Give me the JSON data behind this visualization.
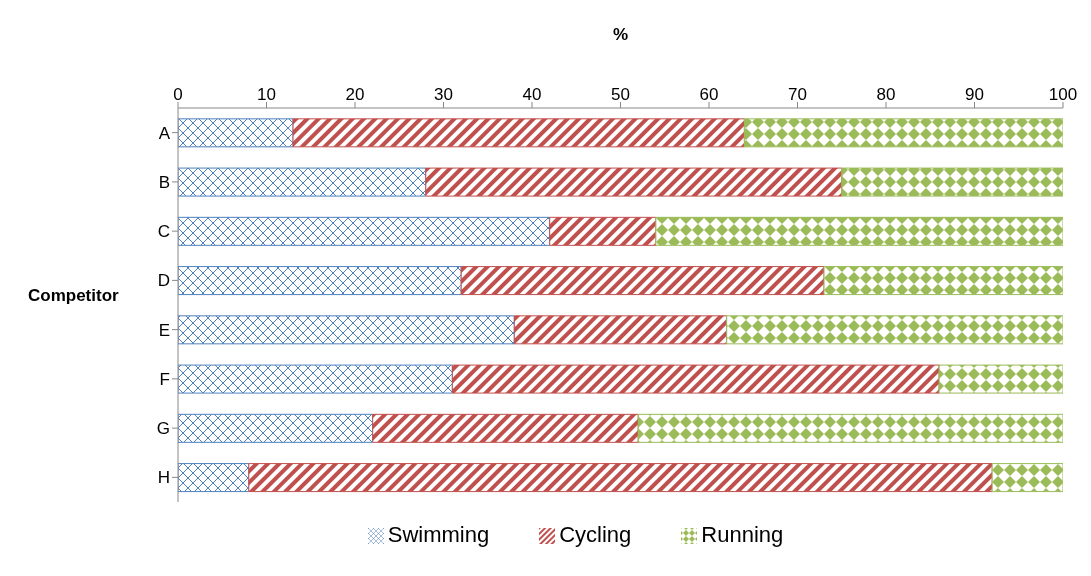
{
  "chart_data": {
    "type": "bar",
    "orientation": "horizontal",
    "stacked": true,
    "xlabel": "%",
    "ylabel": "Competitor",
    "categories": [
      "A",
      "B",
      "C",
      "D",
      "E",
      "F",
      "G",
      "H"
    ],
    "series": [
      {
        "name": "Swimming",
        "color": "#4f81bd",
        "values": [
          13,
          28,
          42,
          32,
          38,
          31,
          22,
          8
        ]
      },
      {
        "name": "Cycling",
        "color": "#c0504d",
        "values": [
          51,
          47,
          12,
          41,
          24,
          55,
          30,
          84
        ]
      },
      {
        "name": "Running",
        "color": "#9bbb59",
        "values": [
          36,
          25,
          46,
          27,
          38,
          14,
          48,
          8
        ]
      }
    ],
    "xlim": [
      0,
      100
    ],
    "xticks": [
      0,
      10,
      20,
      30,
      40,
      50,
      60,
      70,
      80,
      90,
      100
    ],
    "grid": false,
    "legend": "bottom"
  }
}
